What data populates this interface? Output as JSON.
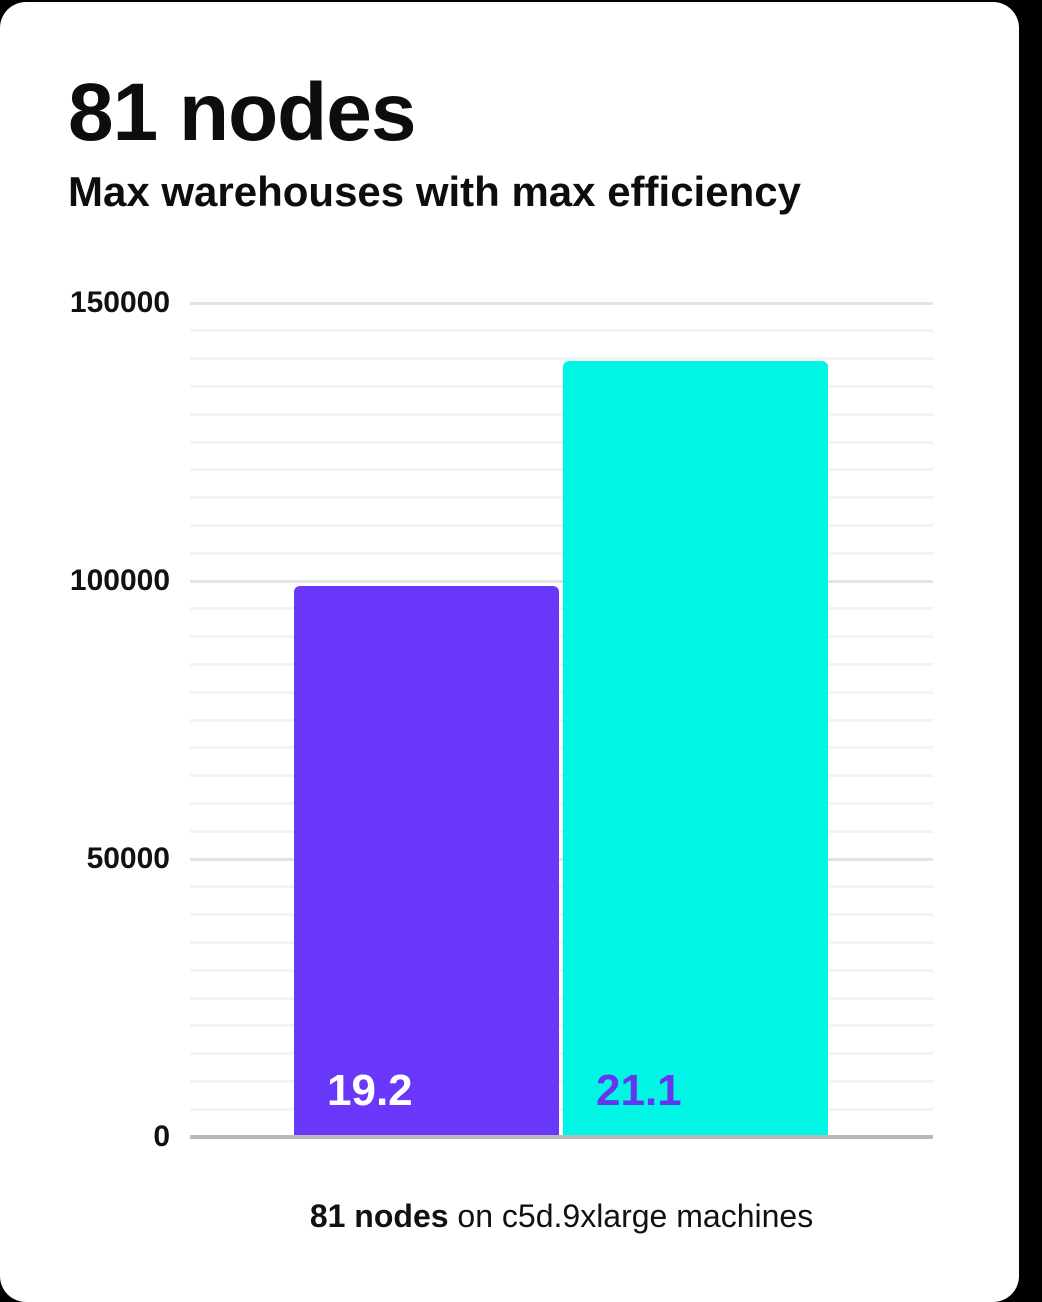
{
  "header": {
    "title": "81 nodes",
    "subtitle": "Max warehouses with max efficiency"
  },
  "caption": {
    "bold": "81 nodes",
    "rest": " on c5d.9xlarge machines"
  },
  "colors": {
    "page_bg": "#000000",
    "card_bg": "#ffffff",
    "text": "#0d0d0d",
    "bar_purple": "#6A38FB",
    "bar_cyan": "#00F6E4",
    "bar_label_on_purple": "#FFFFFF",
    "bar_label_on_cyan": "#6535F0",
    "grid_minor": "#f3f3f3",
    "grid_major": "#e3e3e3",
    "axis_zero_line": "#b9b9b9"
  },
  "chart_data": {
    "type": "bar",
    "title": "81 nodes",
    "subtitle": "Max warehouses with max efficiency",
    "xlabel": "81 nodes on c5d.9xlarge machines",
    "ylabel": "",
    "categories": [
      "19.2",
      "21.1"
    ],
    "values": [
      99500,
      140000
    ],
    "bar_value_labels": [
      "19.2",
      "21.1"
    ],
    "bar_colors": [
      "#6A38FB",
      "#00F6E4"
    ],
    "bar_label_colors": [
      "#FFFFFF",
      "#6535F0"
    ],
    "ylim": [
      0,
      150000
    ],
    "yticks": [
      0,
      50000,
      100000,
      150000
    ],
    "ytick_labels": [
      "0",
      "50000",
      "100000",
      "150000"
    ],
    "minor_grid_step": 5000,
    "grid": true,
    "legend": false
  }
}
